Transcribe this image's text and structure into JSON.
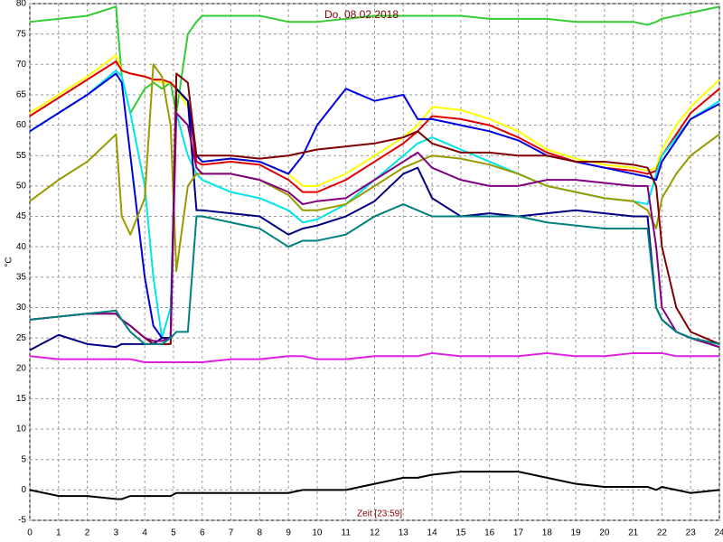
{
  "chart_data": {
    "type": "line",
    "title": "Do, 08.02.2018",
    "x_label": "Zeit [23:59]",
    "y_label": "°C",
    "x": [
      0,
      1,
      2,
      3,
      3.2,
      3.5,
      4,
      4.3,
      4.6,
      4.9,
      5.1,
      5.5,
      5.8,
      6,
      7,
      8,
      9,
      9.5,
      10,
      11,
      12,
      13,
      13.5,
      14,
      15,
      16,
      17,
      18,
      19,
      20,
      21,
      21.5,
      21.8,
      22,
      22.5,
      23,
      24
    ],
    "xlim": [
      0,
      24
    ],
    "xticks": [
      0,
      1,
      2,
      3,
      4,
      5,
      6,
      7,
      8,
      9,
      10,
      11,
      12,
      13,
      14,
      15,
      16,
      17,
      18,
      19,
      20,
      21,
      22,
      23,
      24
    ],
    "ylim": [
      -5,
      80
    ],
    "yticks": [
      -5,
      0,
      5,
      10,
      15,
      20,
      25,
      30,
      35,
      40,
      45,
      50,
      55,
      60,
      65,
      70,
      75,
      80
    ],
    "grid": true,
    "series": [
      {
        "color": "#33cc33",
        "values": [
          77,
          77.5,
          78,
          79.5,
          68,
          62,
          66,
          67,
          66,
          67,
          62,
          75,
          77,
          78,
          78,
          78,
          77,
          77,
          77,
          77.5,
          78,
          78,
          78,
          78,
          78,
          77.5,
          77.5,
          77.5,
          77,
          77,
          77,
          76.5,
          77,
          77.5,
          78,
          78.5,
          79.5
        ]
      },
      {
        "color": "#ffff00",
        "values": [
          62,
          65,
          68,
          71.5,
          69,
          68.5,
          68,
          67.5,
          67,
          67,
          66,
          63,
          55,
          54,
          54.5,
          54,
          52,
          50,
          50,
          52,
          55,
          58,
          60,
          63,
          62.5,
          61,
          59,
          56,
          54.5,
          53.5,
          53,
          52.5,
          53,
          56,
          60,
          63,
          67.5
        ]
      },
      {
        "color": "#dd0000",
        "values": [
          61.5,
          64.5,
          67.5,
          70.5,
          69,
          68.5,
          68,
          67.5,
          67.5,
          67,
          66,
          64,
          54,
          53.5,
          54,
          53.5,
          51,
          49,
          49,
          51,
          54,
          57,
          59,
          61.5,
          61,
          60,
          58,
          55.5,
          54,
          53,
          52.5,
          52,
          52.5,
          55,
          58.5,
          62,
          66
        ]
      },
      {
        "color": "#00e5e5",
        "values": [
          59,
          62,
          65,
          69,
          68,
          62,
          50,
          35,
          25,
          30,
          62,
          55,
          52,
          51,
          49,
          48,
          46,
          44,
          44.5,
          47,
          51,
          55,
          57,
          58,
          56,
          54,
          52,
          50,
          49,
          48,
          47.5,
          47,
          52,
          55,
          58,
          61,
          64
        ]
      },
      {
        "color": "#0000dd",
        "values": [
          59,
          62,
          65,
          68.5,
          67,
          55,
          35,
          27,
          25,
          25,
          66,
          64,
          55,
          54,
          54.5,
          54,
          52,
          55,
          60,
          66,
          64,
          65,
          61,
          61,
          60,
          59,
          57.5,
          55,
          54,
          53,
          52,
          51.5,
          51,
          54,
          57.5,
          61,
          63.5
        ]
      },
      {
        "color": "#000080",
        "values": [
          23,
          25.5,
          24,
          23.5,
          24,
          24,
          24,
          24,
          25,
          25,
          66,
          64,
          46,
          46,
          45.5,
          45,
          42,
          43,
          43.5,
          45,
          47.5,
          52,
          53,
          48,
          45,
          45.5,
          45,
          45.5,
          46,
          45.5,
          45,
          45,
          30,
          28,
          26,
          25,
          23.5
        ]
      },
      {
        "color": "#999900",
        "values": [
          47.5,
          51,
          54,
          58.5,
          45,
          42,
          48,
          70,
          68,
          60,
          36,
          50,
          52,
          52,
          52,
          51,
          48.5,
          46,
          46,
          47,
          50,
          53,
          54,
          55,
          54.5,
          53.5,
          52,
          50,
          49,
          48,
          47.5,
          46,
          43,
          48,
          52,
          55,
          58.5
        ]
      },
      {
        "color": "#800000",
        "values": [
          28,
          28.5,
          29,
          29,
          28,
          27,
          25,
          24,
          24,
          24,
          68.5,
          67,
          55,
          55,
          55,
          54.5,
          55,
          55.5,
          56,
          56.5,
          57,
          58,
          59,
          57,
          55.5,
          55.5,
          55,
          55,
          54,
          54,
          53.5,
          53,
          50,
          40,
          30,
          26,
          24
        ]
      },
      {
        "color": "#800080",
        "values": [
          28,
          28.5,
          29,
          29,
          28,
          27,
          25,
          24.5,
          24.5,
          25,
          62,
          60,
          53,
          52,
          52,
          51,
          49,
          47,
          47.5,
          48,
          51,
          54,
          55.5,
          53,
          51,
          50,
          50,
          51,
          51,
          50.5,
          50,
          50,
          40,
          30,
          26,
          25,
          23.5
        ]
      },
      {
        "color": "#008080",
        "values": [
          28,
          28.5,
          29,
          29.5,
          28,
          26,
          24,
          24,
          24,
          25,
          26,
          26,
          45,
          45,
          44,
          43,
          40,
          41,
          41,
          42,
          45,
          47,
          46,
          45,
          45,
          45,
          45,
          44,
          43.5,
          43,
          43,
          43,
          30,
          28,
          26,
          25,
          24
        ]
      },
      {
        "color": "#e020e0",
        "values": [
          22,
          21.5,
          21.5,
          21.5,
          21.5,
          21.5,
          21,
          21,
          21,
          21,
          21,
          21,
          21,
          21,
          21.5,
          21.5,
          22,
          22,
          21.5,
          21.5,
          22,
          22,
          22,
          22.5,
          22,
          22,
          22,
          22.5,
          22,
          22,
          22.5,
          22.5,
          22.5,
          22.5,
          22,
          22,
          22
        ]
      },
      {
        "color": "#000000",
        "values": [
          0,
          -1,
          -1,
          -1.5,
          -1.5,
          -1,
          -1,
          -1,
          -1,
          -1,
          -0.5,
          -0.5,
          -0.5,
          -0.5,
          -0.5,
          -0.5,
          -0.5,
          0,
          0,
          0,
          1,
          2,
          2,
          2.5,
          3,
          3,
          3,
          2,
          1,
          0.5,
          0.5,
          0.5,
          0,
          0.5,
          0,
          -0.5,
          0
        ]
      }
    ]
  }
}
